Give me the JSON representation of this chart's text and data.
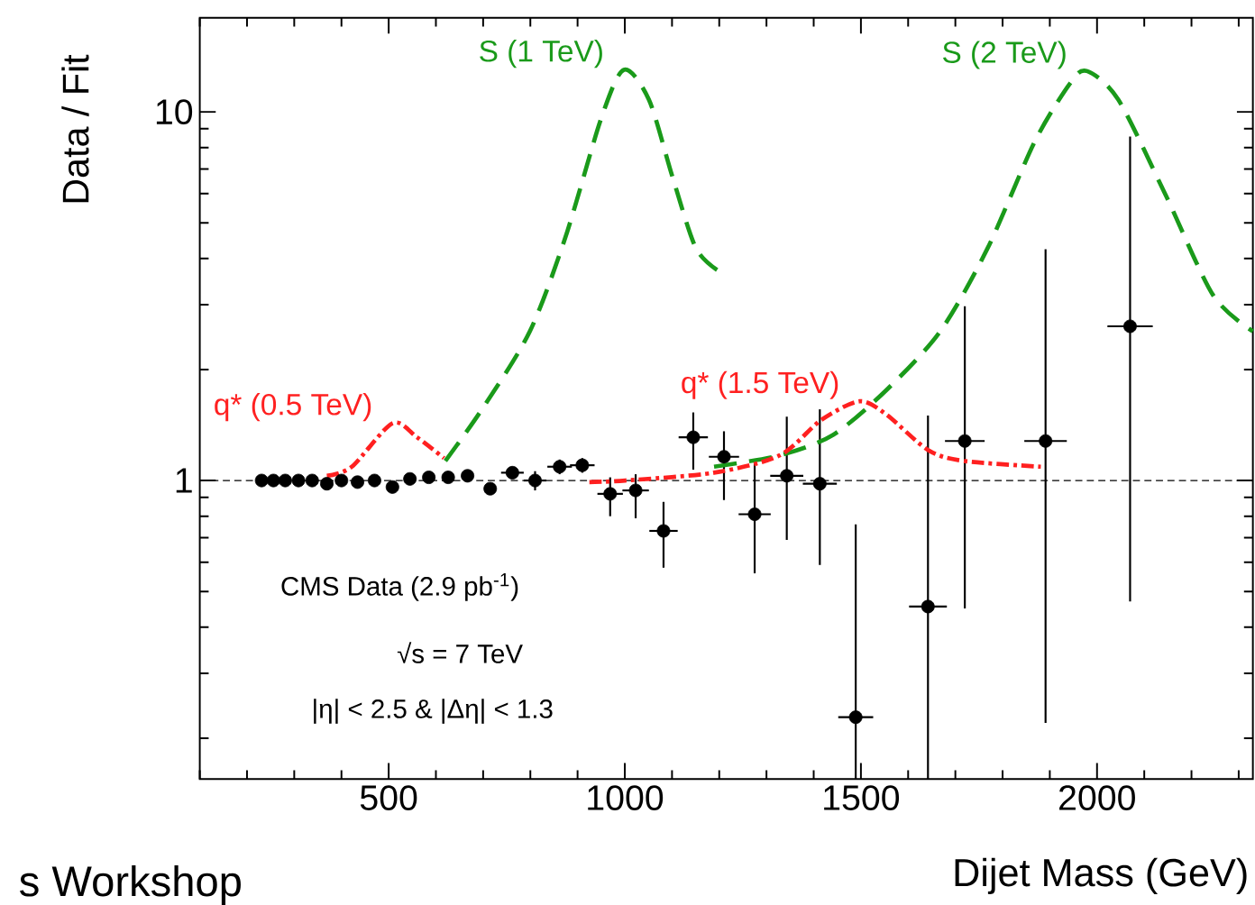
{
  "chart_data": {
    "type": "scatter",
    "xlabel": "Dijet Mass (GeV)",
    "ylabel": "Data / Fit",
    "log": "y",
    "marker": "circle",
    "xlim": [
      100,
      2330
    ],
    "xticks": [
      {
        "value": 100,
        "label": null
      },
      {
        "value": 200,
        "label": null
      },
      {
        "value": 300,
        "label": null
      },
      {
        "value": 400,
        "label": null
      },
      500,
      {
        "value": 600,
        "label": null
      },
      {
        "value": 700,
        "label": null
      },
      {
        "value": 800,
        "label": null
      },
      {
        "value": 900,
        "label": null
      },
      1000,
      {
        "value": 1100,
        "label": null
      },
      {
        "value": 1200,
        "label": null
      },
      {
        "value": 1300,
        "label": null
      },
      {
        "value": 1400,
        "label": null
      },
      1500,
      {
        "value": 1600,
        "label": null
      },
      {
        "value": 1700,
        "label": null
      },
      {
        "value": 1800,
        "label": null
      },
      {
        "value": 1900,
        "label": null
      },
      2000,
      {
        "value": 2100,
        "label": null
      },
      {
        "value": 2200,
        "label": null
      },
      {
        "value": 2300,
        "label": null
      }
    ],
    "ylim": [
      0.155,
      18
    ],
    "yticks": [
      {
        "value": 0.2,
        "label": null
      },
      {
        "value": 0.3,
        "label": null
      },
      {
        "value": 0.4,
        "label": null
      },
      {
        "value": 0.5,
        "label": null
      },
      {
        "value": 0.6,
        "label": null
      },
      {
        "value": 0.7,
        "label": null
      },
      {
        "value": 0.8,
        "label": null
      },
      {
        "value": 0.9,
        "label": null
      },
      1,
      {
        "value": 2,
        "label": null
      },
      {
        "value": 3,
        "label": null
      },
      {
        "value": 4,
        "label": null
      },
      {
        "value": 5,
        "label": null
      },
      {
        "value": 6,
        "label": null
      },
      {
        "value": 7,
        "label": null
      },
      {
        "value": 8,
        "label": null
      },
      {
        "value": 9,
        "label": null
      },
      10
    ],
    "series": [
      {
        "color": "#000000",
        "x": [
          231,
          256,
          281,
          309,
          338,
          369,
          400,
          434,
          470,
          508,
          545,
          585,
          626,
          667,
          715,
          762,
          810,
          862,
          910,
          969,
          1023,
          1082,
          1145,
          1210,
          1275,
          1343,
          1413,
          1489,
          1642,
          1720,
          1891,
          2070
        ],
        "values": [
          1.0,
          1.0,
          1.0,
          1.0,
          1.0,
          0.98,
          1.0,
          0.99,
          1.0,
          0.96,
          1.01,
          1.02,
          1.02,
          1.03,
          0.95,
          1.05,
          1.0,
          1.09,
          1.1,
          0.92,
          0.94,
          0.73,
          1.31,
          1.16,
          0.81,
          1.03,
          0.98,
          0.228,
          0.455,
          1.28,
          1.28,
          2.62
        ],
        "errors": [
          null,
          null,
          null,
          null,
          null,
          null,
          null,
          null,
          null,
          null,
          null,
          null,
          null,
          null,
          null,
          [
            1.01,
            1.09
          ],
          [
            0.94,
            1.06
          ],
          [
            1.04,
            1.14
          ],
          [
            1.05,
            1.15
          ],
          [
            0.8,
            1.02
          ],
          [
            0.79,
            1.04
          ],
          [
            0.58,
            0.875
          ],
          [
            1.07,
            1.53
          ],
          [
            0.885,
            1.36
          ],
          [
            0.56,
            1.13
          ],
          [
            0.69,
            1.49
          ],
          [
            0.59,
            1.56
          ],
          [
            0.155,
            0.76
          ],
          [
            0.155,
            1.5
          ],
          [
            0.45,
            2.97
          ],
          [
            0.22,
            4.24
          ],
          [
            0.47,
            8.57
          ]
        ],
        "xerrors": [
          null,
          null,
          null,
          null,
          null,
          null,
          null,
          null,
          null,
          null,
          null,
          null,
          null,
          null,
          null,
          24,
          24,
          26,
          26,
          27,
          28,
          30,
          31,
          32,
          34,
          35,
          36,
          37,
          40,
          42,
          45,
          48
        ]
      },
      {
        "type": "line",
        "name": "S (1 TeV)",
        "color": "#1a9a1a",
        "line_style": "dashed",
        "marker": "none",
        "x": [
          620,
          699,
          799,
          875,
          950,
          998,
          1051,
          1101,
          1151,
          1202
        ],
        "values": [
          1.13,
          1.57,
          2.54,
          4.6,
          9.6,
          13.0,
          10.8,
          6.66,
          4.26,
          3.68
        ]
      },
      {
        "type": "line",
        "name": "S (2 TeV)",
        "color": "#1a9a1a",
        "line_style": "dashed",
        "marker": "none",
        "x": [
          1189,
          1328,
          1441,
          1554,
          1668,
          1768,
          1868,
          1944,
          1979,
          2045,
          2145,
          2246,
          2330
        ],
        "values": [
          1.09,
          1.17,
          1.33,
          1.76,
          2.54,
          4.26,
          8.3,
          12.0,
          12.9,
          10.8,
          5.96,
          3.18,
          2.54
        ]
      },
      {
        "type": "line",
        "name": "q* (0.5 TeV)",
        "color": "#ff2020",
        "line_style": "dashdot",
        "marker": "none",
        "x": [
          369,
          422,
          508,
          560,
          617
        ],
        "values": [
          1.03,
          1.09,
          1.43,
          1.31,
          1.15
        ]
      },
      {
        "type": "line",
        "name": "q* (1.5 TeV)",
        "color": "#ff2020",
        "line_style": "dashdot",
        "marker": "none",
        "x": [
          925,
          1001,
          1189,
          1328,
          1416,
          1497,
          1554,
          1642,
          1718,
          1881
        ],
        "values": [
          0.99,
          1.0,
          1.05,
          1.17,
          1.46,
          1.64,
          1.51,
          1.21,
          1.13,
          1.09
        ]
      }
    ],
    "ref_lines": [
      {
        "axis": "y",
        "value": 1,
        "color": "#000000",
        "line_style": "dashed"
      }
    ],
    "annotations": [
      "CMS Data (2.9 pb$^{-1}$)",
      "√s = 7 TeV",
      "|η| < 2.5 & |Δη| < 1.3",
      "s Workshop"
    ]
  }
}
